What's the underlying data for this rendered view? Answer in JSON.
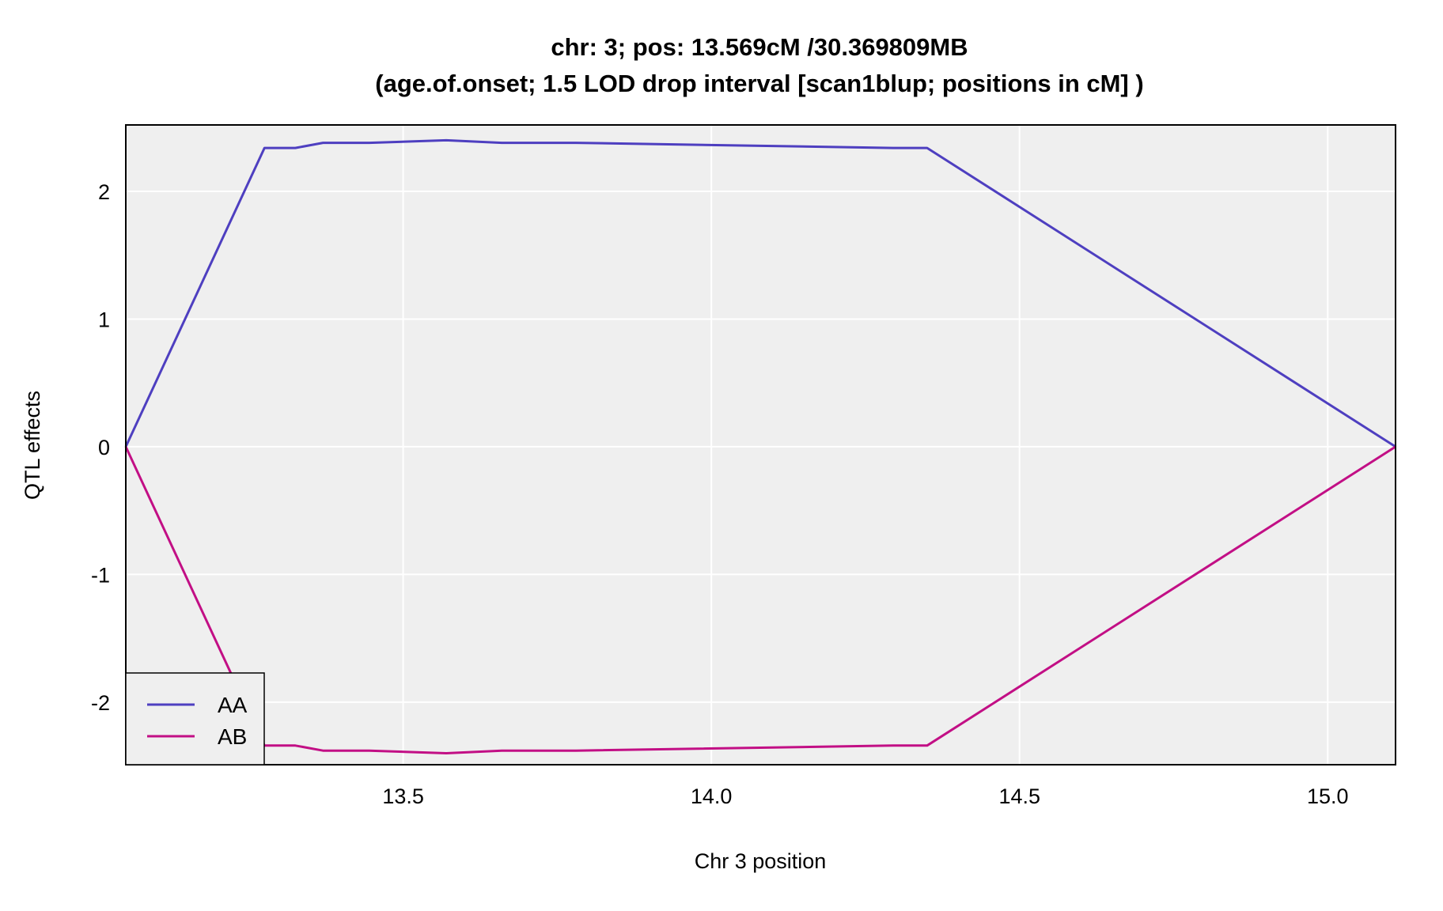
{
  "chart_data": {
    "type": "line",
    "title": "chr: 3; pos: 13.569cM /30.369809MB",
    "subtitle": "(age.of.onset; 1.5 LOD drop interval [scan1blup; positions in cM] )",
    "xlabel": "Chr 3 position",
    "ylabel": "QTL effects",
    "xlim": [
      13.05,
      15.11
    ],
    "ylim": [
      -2.49,
      2.52
    ],
    "xticks": [
      13.5,
      14.0,
      14.5,
      15.0
    ],
    "xtick_labels": [
      "13.5",
      "14.0",
      "14.5",
      "15.0"
    ],
    "yticks": [
      -2,
      -1,
      0,
      1,
      2
    ],
    "ytick_labels": [
      "-2",
      "-1",
      "0",
      "1",
      "2"
    ],
    "grid": true,
    "background": "#efefef",
    "legend_position": "bottom-left",
    "x": [
      13.05,
      13.275,
      13.325,
      13.37,
      13.445,
      13.57,
      13.66,
      13.78,
      14.295,
      14.35,
      15.11
    ],
    "series": [
      {
        "name": "AA",
        "color": "#4e3fc0",
        "values": [
          0,
          2.34,
          2.34,
          2.38,
          2.38,
          2.4,
          2.38,
          2.38,
          2.34,
          2.34,
          0
        ]
      },
      {
        "name": "AB",
        "color": "#c20f85",
        "values": [
          0,
          -2.34,
          -2.34,
          -2.38,
          -2.38,
          -2.4,
          -2.38,
          -2.38,
          -2.34,
          -2.34,
          0
        ]
      }
    ]
  }
}
